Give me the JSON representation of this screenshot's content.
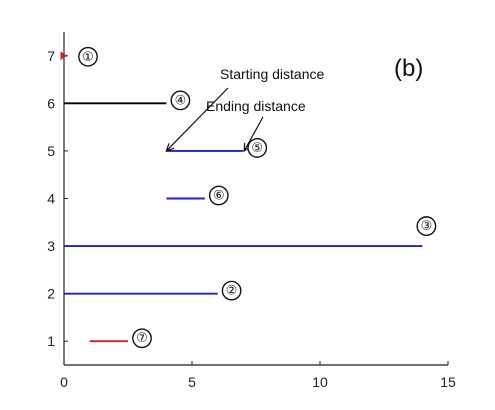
{
  "chart_data": {
    "type": "line",
    "title": "",
    "xlabel": "",
    "ylabel": "",
    "panel_label": "(b)",
    "xlim": [
      0,
      15
    ],
    "ylim": [
      0.5,
      7.5
    ],
    "x_ticks": [
      0,
      5,
      10,
      15
    ],
    "y_ticks": [
      1,
      2,
      3,
      4,
      5,
      6,
      7
    ],
    "grid": false,
    "segments": [
      {
        "label": "①",
        "y": 7,
        "x_start": 0,
        "x_end": 0.12,
        "color": "#cc2222"
      },
      {
        "label": "④",
        "y": 6,
        "x_start": 0,
        "x_end": 4,
        "color": "#000000"
      },
      {
        "label": "⑤",
        "y": 5,
        "x_start": 4,
        "x_end": 7,
        "color": "#1f1fcc"
      },
      {
        "label": "⑥",
        "y": 4,
        "x_start": 4,
        "x_end": 5.5,
        "color": "#1f1fcc"
      },
      {
        "label": "③",
        "y": 3,
        "x_start": 0,
        "x_end": 14,
        "color": "#1f1fcc"
      },
      {
        "label": "②",
        "y": 2,
        "x_start": 0,
        "x_end": 6,
        "color": "#1f1fcc"
      },
      {
        "label": "⑦",
        "y": 1,
        "x_start": 1,
        "x_end": 2.5,
        "color": "#cc2222"
      }
    ],
    "annotations": [
      {
        "text": "Starting distance",
        "target": {
          "x": 4,
          "y": 5
        }
      },
      {
        "text": "Ending distance",
        "target": {
          "x": 7,
          "y": 5
        }
      }
    ]
  }
}
